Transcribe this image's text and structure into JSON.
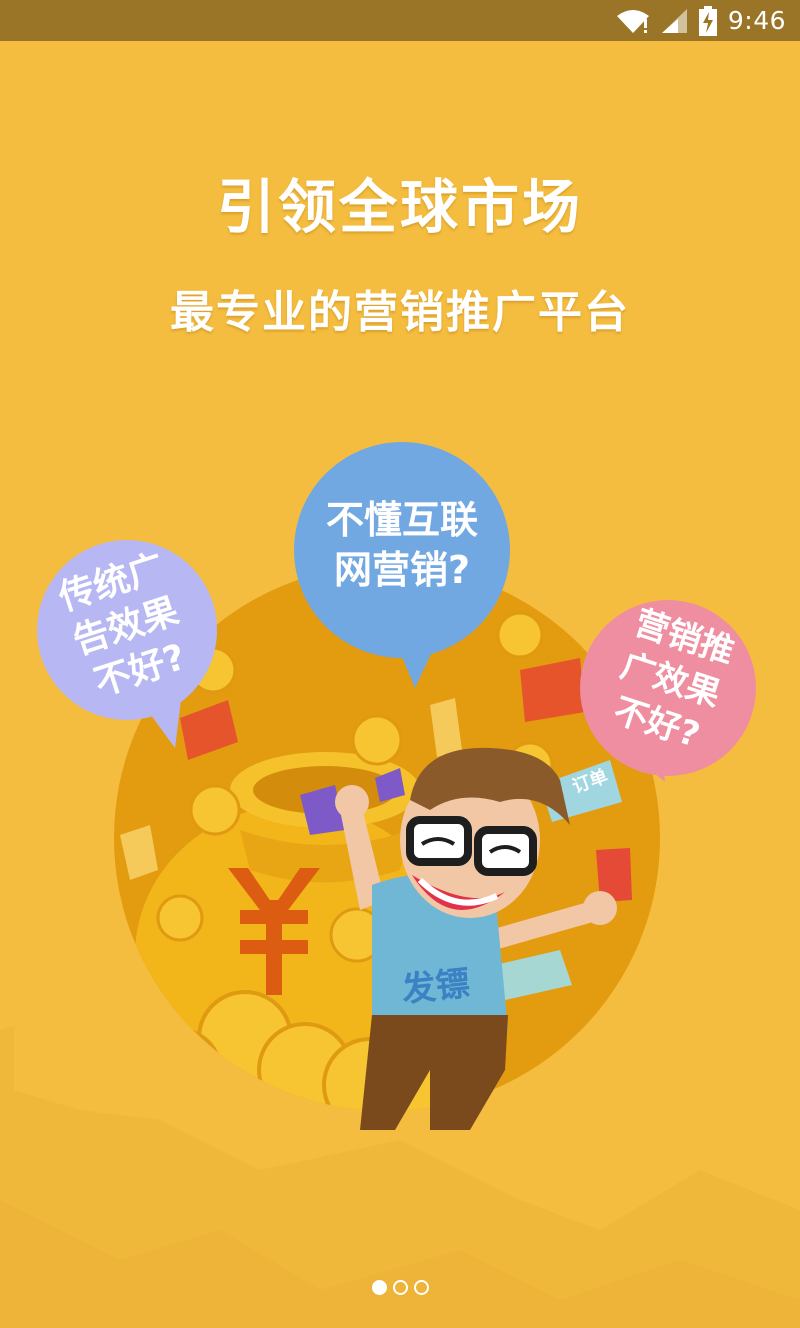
{
  "status_bar": {
    "time": "9:46",
    "icons": [
      "wifi-icon",
      "signal-icon",
      "battery-charging-icon"
    ]
  },
  "hero": {
    "title": "引领全球市场",
    "subtitle": "最专业的营销推广平台"
  },
  "bubbles": {
    "left": {
      "line1": "传统广",
      "line2": "告效果",
      "line3": "不好?"
    },
    "center": {
      "line1": "不懂互联",
      "line2": "网营销?"
    },
    "right": {
      "line1": "营销推",
      "line2": "广效果",
      "line3": "不好?"
    }
  },
  "mascot": {
    "shirt_text": "发镖"
  },
  "ticket_text": "订单",
  "pager": {
    "total": 3,
    "active_index": 0
  },
  "colors": {
    "background": "#f4bd3f",
    "status_bar": "#9a7527",
    "bubble_left": "#b7b7f3",
    "bubble_center": "#72a8e2",
    "bubble_right": "#ef8ea0"
  }
}
